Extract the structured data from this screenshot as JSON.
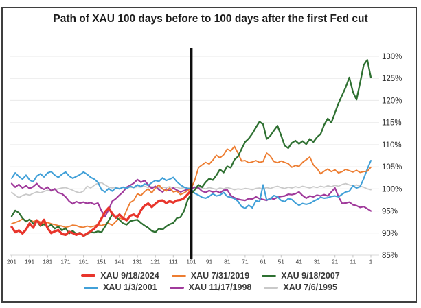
{
  "title": "Path of XAU 100 days before to 100 days after the first Fed cut",
  "colors": {
    "frame_border": "#3f3f3f",
    "grid_line": "#eaeaea",
    "axis_line": "#d8d8d8",
    "tick_mark": "#c4c4c4",
    "cut_line": "#0e0e0e",
    "title_text": "#1d1d1d",
    "axis_text": "#3c3c3c",
    "legend_text": "#3a3a3a"
  },
  "chart_data": {
    "type": "line",
    "title": "Path of XAU 100 days before to 100 days after the first Fed cut",
    "grid": "horizontal",
    "legend_position": "bottom",
    "x_axis": {
      "tick_labels": [
        201,
        191,
        181,
        171,
        161,
        151,
        141,
        131,
        121,
        111,
        101,
        91,
        81,
        71,
        61,
        51,
        41,
        31,
        21,
        11,
        1
      ],
      "description": "day index: 201 = 100 days before the cut, 101 = Fed cut day (vertical line), 1 = 100 days after"
    },
    "y_axis": {
      "tick_labels": [
        "130%",
        "125%",
        "120%",
        "115%",
        "110%",
        "105%",
        "100%",
        "95%",
        "90%",
        "85%"
      ],
      "min": 85,
      "max": 130,
      "step": 5,
      "unit": "%",
      "side": "right"
    },
    "cut_line_at_day": 101,
    "x_rel_days": {
      "start": -100,
      "end": 100,
      "step": 2
    },
    "series": [
      {
        "name": "XAU 9/18/2024",
        "color": "#e8352c",
        "line_width": 3.3,
        "values": [
          91.4,
          90.2,
          90.6,
          89.9,
          90.8,
          92.2,
          91.2,
          92.9,
          91.9,
          93.0,
          91.1,
          90.0,
          90.4,
          90.7,
          89.8,
          89.6,
          90.3,
          90.0,
          89.6,
          90.0,
          89.4,
          89.9,
          90.4,
          91.0,
          91.9,
          93.3,
          94.8,
          95.7,
          94.4,
          93.5,
          94.2,
          93.4,
          92.9,
          93.9,
          94.2,
          93.6,
          95.2,
          96.2,
          96.7,
          95.9,
          96.6,
          97.3,
          97.4,
          96.8,
          97.2,
          96.9,
          97.4,
          97.5,
          97.9,
          98.8,
          99.7
        ]
      },
      {
        "name": "XAU 7/31/2019",
        "color": "#ed7d31",
        "line_width": 1.9,
        "values": [
          92.1,
          92.4,
          92.7,
          93.2,
          92.8,
          93.0,
          92.6,
          92.9,
          92.5,
          92.3,
          92.4,
          92.1,
          91.9,
          91.7,
          91.6,
          91.3,
          91.5,
          91.8,
          91.7,
          91.4,
          91.3,
          91.6,
          91.4,
          91.6,
          91.9,
          91.7,
          92.0,
          92.2,
          91.8,
          92.6,
          93.4,
          93.2,
          95.2,
          96.9,
          97.4,
          98.9,
          98.5,
          99.4,
          100.0,
          99.1,
          100.2,
          100.9,
          100.0,
          99.5,
          100.2,
          99.3,
          99.5,
          98.7,
          99.1,
          99.6,
          100.1,
          102.0,
          104.8,
          105.4,
          106.0,
          105.6,
          106.5,
          107.6,
          107.0,
          107.7,
          109.0,
          108.6,
          109.6,
          108.1,
          106.3,
          106.4,
          105.9,
          106.1,
          106.4,
          106.0,
          106.2,
          108.1,
          107.4,
          106.2,
          105.9,
          106.3,
          106.0,
          105.7,
          104.9,
          105.3,
          105.1,
          106.0,
          106.6,
          107.2,
          105.4,
          104.6,
          103.4,
          104.0,
          104.5,
          103.9,
          104.3,
          103.6,
          103.9,
          104.4,
          104.1,
          103.8,
          104.2,
          103.7,
          103.9,
          104.0,
          104.9
        ]
      },
      {
        "name": "XAU 9/18/2007",
        "color": "#2e7031",
        "line_width": 2.3,
        "values": [
          93.8,
          95.1,
          94.6,
          93.4,
          92.6,
          93.1,
          92.1,
          92.8,
          91.6,
          92.0,
          91.4,
          91.9,
          91.0,
          91.5,
          90.6,
          91.1,
          89.9,
          90.5,
          89.8,
          90.1,
          89.3,
          89.8,
          90.2,
          90.1,
          90.4,
          90.2,
          91.5,
          92.8,
          94.2,
          93.6,
          93.0,
          92.2,
          91.9,
          92.7,
          92.9,
          93.0,
          92.3,
          91.7,
          91.2,
          90.5,
          90.2,
          91.0,
          90.8,
          91.5,
          92.0,
          92.3,
          93.4,
          93.6,
          95.0,
          97.5,
          98.9,
          99.8,
          100.9,
          100.4,
          101.5,
          102.3,
          102.0,
          103.1,
          104.4,
          103.7,
          105.1,
          104.8,
          106.6,
          107.3,
          109.0,
          110.6,
          111.4,
          112.5,
          113.9,
          115.2,
          114.6,
          111.3,
          112.0,
          113.2,
          114.3,
          112.1,
          109.8,
          109.2,
          110.4,
          110.9,
          110.2,
          110.8,
          110.1,
          111.3,
          110.6,
          111.7,
          112.4,
          114.5,
          115.9,
          115.0,
          117.2,
          119.4,
          121.2,
          123.0,
          125.2,
          121.9,
          120.2,
          124.0,
          128.0,
          129.2,
          125.2
        ]
      },
      {
        "name": "XAU 1/3/2001",
        "color": "#41a0d8",
        "line_width": 2.1,
        "values": [
          102.4,
          103.6,
          102.8,
          102.2,
          103.1,
          102.0,
          101.6,
          102.9,
          103.4,
          102.7,
          103.6,
          103.9,
          103.1,
          102.6,
          103.3,
          103.8,
          102.9,
          102.4,
          102.8,
          103.2,
          103.8,
          103.3,
          102.6,
          102.2,
          101.5,
          99.8,
          99.3,
          100.1,
          99.5,
          100.2,
          100.0,
          100.4,
          100.1,
          100.6,
          100.3,
          100.9,
          100.5,
          101.1,
          100.8,
          101.4,
          101.9,
          101.7,
          102.5,
          101.9,
          102.2,
          102.6,
          101.6,
          100.9,
          100.4,
          100.1,
          99.9,
          99.0,
          98.6,
          98.1,
          97.9,
          98.3,
          98.9,
          98.4,
          98.6,
          99.2,
          98.3,
          98.1,
          97.8,
          97.2,
          96.0,
          95.6,
          96.3,
          95.7,
          97.3,
          97.1,
          100.9,
          97.5,
          97.7,
          98.5,
          98.2,
          97.4,
          97.1,
          97.8,
          97.6,
          96.8,
          96.3,
          96.7,
          96.5,
          96.7,
          97.2,
          97.6,
          98.1,
          97.9,
          98.0,
          98.3,
          98.4,
          98.2,
          98.8,
          99.3,
          99.5,
          100.7,
          100.2,
          100.5,
          102.3,
          104.5,
          106.4
        ]
      },
      {
        "name": "XAU 11/17/1998",
        "color": "#a03a9b",
        "line_width": 2.2,
        "values": [
          101.2,
          100.4,
          101.0,
          100.2,
          100.7,
          100.1,
          100.5,
          101.2,
          100.3,
          99.9,
          100.4,
          99.6,
          100.0,
          99.1,
          98.9,
          98.2,
          97.2,
          96.6,
          97.1,
          96.8,
          97.0,
          96.7,
          96.9,
          96.5,
          96.8,
          95.0,
          93.8,
          95.3,
          97.2,
          97.8,
          98.6,
          99.3,
          100.4,
          100.8,
          101.3,
          102.1,
          101.5,
          101.9,
          100.9,
          100.1,
          100.6,
          99.8,
          99.3,
          100.0,
          99.6,
          100.2,
          99.7,
          99.3,
          99.6,
          99.9,
          100.1,
          100.4,
          100.2,
          99.5,
          99.2,
          99.6,
          99.3,
          99.5,
          99.1,
          99.7,
          99.8,
          98.5,
          98.0,
          97.7,
          97.5,
          97.4,
          97.8,
          97.7,
          98.2,
          97.8,
          97.6,
          97.4,
          97.9,
          97.7,
          98.1,
          98.3,
          98.4,
          98.8,
          98.7,
          98.9,
          99.3,
          98.5,
          97.9,
          98.4,
          98.2,
          98.6,
          98.4,
          98.7,
          98.4,
          99.3,
          100.2,
          98.2,
          96.7,
          96.8,
          97.0,
          96.4,
          96.2,
          95.8,
          96.0,
          95.5,
          95.0
        ]
      },
      {
        "name": "XAU 7/6/1995",
        "color": "#c9c9c9",
        "line_width": 1.8,
        "values": [
          99.2,
          98.6,
          98.0,
          98.5,
          98.8,
          98.6,
          99.0,
          99.3,
          99.1,
          99.4,
          99.7,
          99.5,
          99.8,
          100.0,
          100.2,
          100.3,
          100.0,
          99.7,
          99.3,
          99.1,
          99.5,
          100.6,
          100.2,
          100.8,
          101.3,
          101.4,
          100.9,
          100.4,
          100.2,
          100.4,
          100.1,
          100.3,
          100.2,
          100.4,
          100.3,
          100.5,
          100.4,
          100.6,
          100.3,
          100.5,
          100.4,
          100.2,
          100.4,
          100.3,
          100.5,
          100.2,
          100.4,
          100.1,
          100.3,
          100.2,
          100.3,
          100.1,
          100.4,
          100.2,
          100.0,
          100.3,
          100.1,
          99.9,
          100.2,
          100.0,
          100.3,
          100.1,
          99.8,
          100.0,
          99.9,
          100.1,
          100.0,
          99.8,
          100.1,
          100.2,
          100.0,
          100.3,
          100.1,
          100.4,
          100.6,
          100.3,
          100.1,
          100.4,
          100.2,
          100.5,
          100.3,
          100.6,
          100.4,
          100.2,
          100.5,
          100.3,
          100.6,
          100.4,
          100.7,
          100.5,
          100.8,
          100.6,
          101.0,
          101.2,
          100.9,
          100.7,
          100.9,
          100.6,
          100.4,
          100.0,
          99.8
        ]
      }
    ]
  }
}
